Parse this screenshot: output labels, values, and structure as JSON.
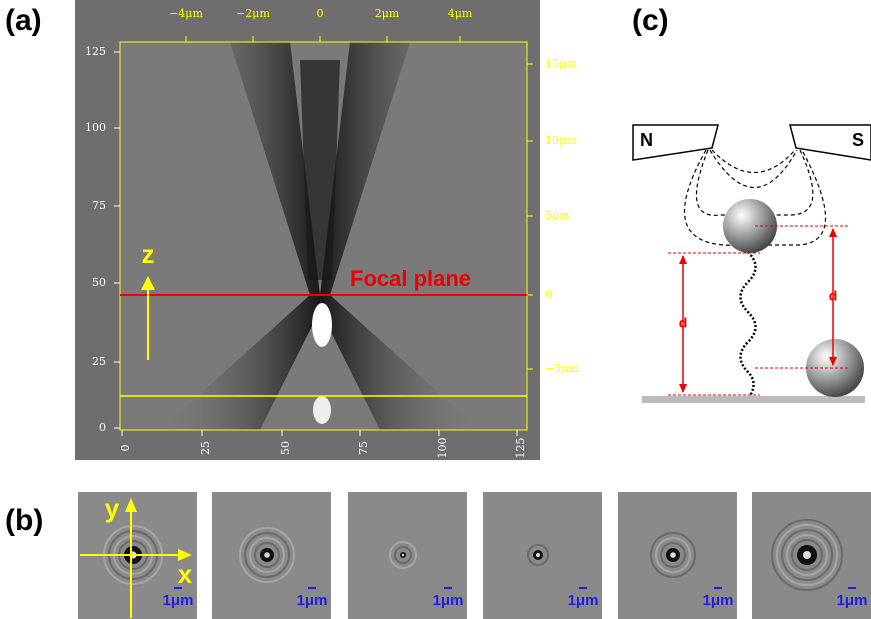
{
  "panels": {
    "a": {
      "label": "(a)",
      "top_ticks": [
        "−4μm",
        "−2μm",
        "0",
        "2μm",
        "4μm"
      ],
      "left_ticks": [
        "125",
        "100",
        "75",
        "50",
        "25",
        "0"
      ],
      "right_ticks": [
        "15μm",
        "10μm",
        "5μm",
        "0",
        "−5μm"
      ],
      "bottom_ticks": [
        "0",
        "25",
        "50",
        "75",
        "100",
        "125"
      ],
      "axis_label": "z",
      "focal_label": "Focal plane"
    },
    "b": {
      "label": "(b)",
      "y_label": "y",
      "x_label": "x",
      "scale_bars": [
        "1μm",
        "1μm",
        "1μm",
        "1μm",
        "1μm",
        "1μm"
      ]
    },
    "c": {
      "label": "(c)",
      "north": "N",
      "south": "S",
      "distance_left": "d",
      "distance_right": "d"
    }
  }
}
